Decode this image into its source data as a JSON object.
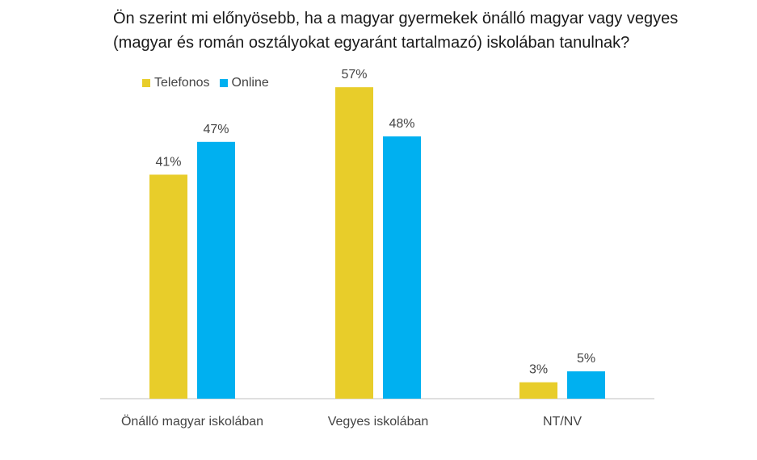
{
  "chart_data": {
    "type": "bar",
    "title_lines": [
      "Ön szerint mi előnyösebb, ha a magyar gyermekek önálló magyar vagy vegyes",
      "(magyar és román osztályokat egyaránt tartalmazó) iskolában tanulnak?"
    ],
    "categories": [
      "Önálló magyar iskolában",
      "Vegyes iskolában",
      "NT/NV"
    ],
    "series": [
      {
        "name": "Telefonos",
        "color": "#E8CD2A",
        "values": [
          41,
          57,
          3
        ],
        "labels": [
          "41%",
          "57%",
          "3%"
        ]
      },
      {
        "name": "Online",
        "color": "#00B0F0",
        "values": [
          47,
          48,
          5
        ],
        "labels": [
          "47%",
          "48%",
          "5%"
        ]
      }
    ],
    "value_unit": "%",
    "ylim": [
      0,
      60
    ],
    "y_axis_visible": false,
    "grid": false,
    "legend_position": "top-left"
  }
}
